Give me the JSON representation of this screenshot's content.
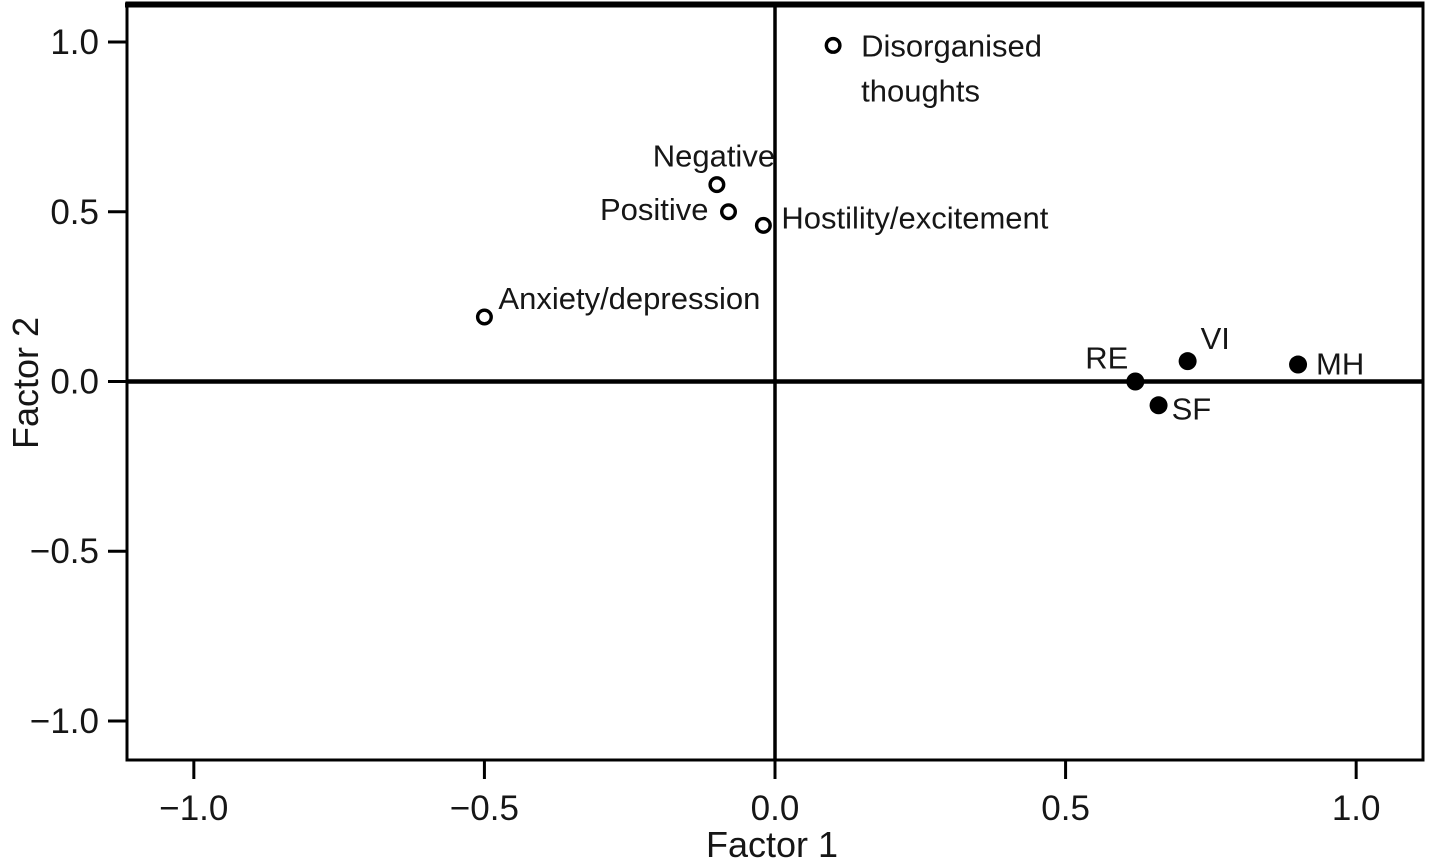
{
  "figure": {
    "background": "#ffffff",
    "ink_color": "#161616",
    "frame_color": "#000000"
  },
  "chart_data": {
    "type": "scatter",
    "title": "",
    "xlabel": "Factor 1",
    "ylabel": "Factor 2",
    "xlim": [
      -1.115,
      1.115
    ],
    "ylim": [
      -1.115,
      1.115
    ],
    "grid": false,
    "frame": true,
    "zero_lines": {
      "horizontal_at_y": 0.0,
      "vertical_at_x": 0.0
    },
    "legend": "none",
    "x_ticks": [
      {
        "value": -1.0,
        "label": "−1.0"
      },
      {
        "value": -0.5,
        "label": "−0.5"
      },
      {
        "value": 0.0,
        "label": "0.0"
      },
      {
        "value": 0.5,
        "label": "0.5"
      },
      {
        "value": 1.0,
        "label": "1.0"
      }
    ],
    "y_ticks": [
      {
        "value": -1.0,
        "label": "−1.0"
      },
      {
        "value": -0.5,
        "label": "−0.5"
      },
      {
        "value": 0.0,
        "label": "0.0"
      },
      {
        "value": 0.5,
        "label": "0.5"
      },
      {
        "value": 1.0,
        "label": "1.0"
      }
    ],
    "series": [
      {
        "name": "open-circle-points",
        "marker": "open",
        "points": [
          {
            "label": "Disorganised thoughts",
            "label_lines": [
              "Disorganised",
              "thoughts"
            ],
            "x": 0.1,
            "y": 0.99,
            "anchor": "start",
            "dx": 28,
            "dy": 11,
            "line_height": 45
          },
          {
            "label": "Negative",
            "x": -0.1,
            "y": 0.58,
            "anchor": "middle",
            "dx": -3,
            "dy": -18
          },
          {
            "label": "Positive",
            "x": -0.08,
            "y": 0.5,
            "anchor": "end",
            "dx": -20,
            "dy": 8
          },
          {
            "label": "Hostility/excitement",
            "x": -0.02,
            "y": 0.46,
            "anchor": "start",
            "dx": 18,
            "dy": 3
          },
          {
            "label": "Anxiety/depression",
            "x": -0.5,
            "y": 0.19,
            "anchor": "start",
            "dx": 14,
            "dy": -8
          }
        ]
      },
      {
        "name": "filled-circle-points",
        "marker": "filled",
        "points": [
          {
            "label": "RE",
            "x": 0.62,
            "y": 0.0,
            "anchor": "end",
            "dx": -7,
            "dy": -13
          },
          {
            "label": "VI",
            "x": 0.71,
            "y": 0.06,
            "anchor": "start",
            "dx": 13,
            "dy": -12
          },
          {
            "label": "SF",
            "x": 0.66,
            "y": -0.07,
            "anchor": "start",
            "dx": 13,
            "dy": 14
          },
          {
            "label": "MH",
            "x": 0.9,
            "y": 0.05,
            "anchor": "start",
            "dx": 18,
            "dy": 10
          }
        ]
      }
    ]
  }
}
